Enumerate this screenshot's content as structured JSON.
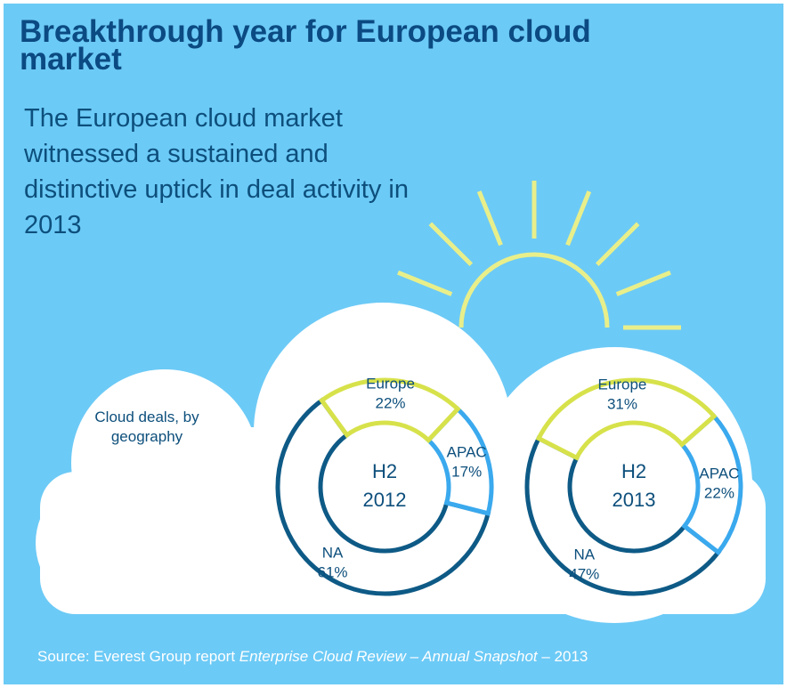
{
  "title": "Breakthrough year for European cloud market",
  "subtitle": "The European cloud market witnessed a sustained and distinctive uptick in deal activity in 2013",
  "chart_label": "Cloud deals, by geography",
  "source": {
    "prefix": "Source: Everest Group report",
    "report": "Enterprise Cloud Review – Annual Snapshot",
    "suffix": "– 2013"
  },
  "chart_data": [
    {
      "type": "pie",
      "title": "H2 2012",
      "categories": [
        "Europe",
        "APAC",
        "NA"
      ],
      "values": [
        22,
        17,
        61
      ],
      "value_labels": [
        "22%",
        "17%",
        "61%"
      ],
      "colors": [
        "#d7e24b",
        "#3aa9ee",
        "#0e5a86"
      ]
    },
    {
      "type": "pie",
      "title": "H2 2013",
      "categories": [
        "Europe",
        "APAC",
        "NA"
      ],
      "values": [
        31,
        22,
        47
      ],
      "value_labels": [
        "31%",
        "22%",
        "47%"
      ],
      "colors": [
        "#d7e24b",
        "#3aa9ee",
        "#0e5a86"
      ]
    }
  ]
}
